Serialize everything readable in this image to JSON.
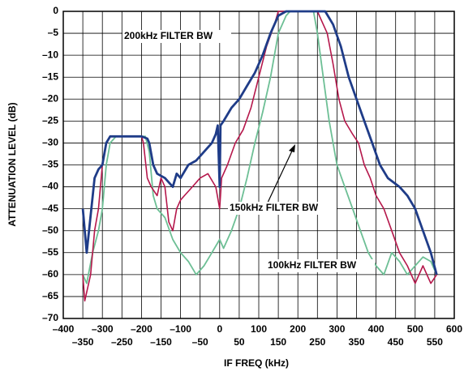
{
  "chart_data": {
    "type": "line",
    "xlabel": "IF FREQ (kHz)",
    "ylabel": "ATTENUATION LEVEL (dB)",
    "xlim": [
      -400,
      600
    ],
    "ylim": [
      -70,
      0
    ],
    "grid": true,
    "xticks": [
      {
        "value": -400,
        "label": "–400"
      },
      {
        "value": -350,
        "label": "–350"
      },
      {
        "value": -300,
        "label": "–300"
      },
      {
        "value": -250,
        "label": "–250"
      },
      {
        "value": -200,
        "label": "–200"
      },
      {
        "value": -150,
        "label": "–150"
      },
      {
        "value": -100,
        "label": "–100"
      },
      {
        "value": -50,
        "label": "–50"
      },
      0,
      50,
      100,
      150,
      200,
      250,
      300,
      350,
      400,
      450,
      500,
      550,
      600
    ],
    "yticks": [
      0,
      {
        "value": -5,
        "label": "–5"
      },
      {
        "value": -10,
        "label": "–10"
      },
      {
        "value": -15,
        "label": "–15"
      },
      {
        "value": -20,
        "label": "–20"
      },
      {
        "value": -25,
        "label": "–25"
      },
      {
        "value": -30,
        "label": "–30"
      },
      {
        "value": -35,
        "label": "–35"
      },
      {
        "value": -40,
        "label": "–40"
      },
      {
        "value": -45,
        "label": "–45"
      },
      {
        "value": -50,
        "label": "–50"
      },
      {
        "value": -55,
        "label": "–55"
      },
      {
        "value": -60,
        "label": "–60"
      },
      {
        "value": -65,
        "label": "–65"
      },
      {
        "value": -70,
        "label": "–70"
      }
    ],
    "series": [
      {
        "name": "200kHz FILTER BW",
        "color": "#1f3c88",
        "x": [
          -350,
          -340,
          -320,
          -310,
          -300,
          -290,
          -280,
          -240,
          -200,
          -185,
          -180,
          -170,
          -160,
          -140,
          -120,
          -110,
          -100,
          -80,
          -60,
          -40,
          -20,
          -10,
          -5,
          0,
          2,
          10,
          30,
          50,
          70,
          90,
          110,
          130,
          150,
          170,
          220,
          270,
          290,
          310,
          330,
          350,
          370,
          390,
          410,
          430,
          460,
          480,
          500,
          520,
          540,
          555
        ],
        "values": [
          -45,
          -55,
          -38,
          -36,
          -35,
          -30,
          -28.5,
          -28.5,
          -28.5,
          -29,
          -30,
          -35,
          -37,
          -38,
          -40,
          -37,
          -38,
          -35,
          -34,
          -32,
          -30,
          -28,
          -26,
          -40,
          -26,
          -25,
          -22,
          -20,
          -17,
          -14,
          -10,
          -5,
          -1,
          0,
          0,
          0,
          -3,
          -8,
          -15,
          -20,
          -25,
          -30,
          -35,
          -38,
          -40,
          -42,
          -45,
          -50,
          -55,
          -60
        ]
      },
      {
        "name": "150kHz FILTER BW",
        "color": "#b5174b",
        "x": [
          -350,
          -345,
          -330,
          -320,
          -310,
          -300,
          -290,
          -280,
          -240,
          -200,
          -195,
          -185,
          -175,
          -160,
          -150,
          -140,
          -130,
          -120,
          -110,
          -100,
          -90,
          -70,
          -50,
          -30,
          -10,
          0,
          5,
          20,
          40,
          60,
          80,
          100,
          120,
          140,
          150,
          200,
          250,
          260,
          275,
          290,
          305,
          320,
          340,
          355,
          370,
          385,
          400,
          420,
          440,
          460,
          480,
          500,
          520,
          540,
          555
        ],
        "values": [
          -60,
          -66,
          -60,
          -50,
          -45,
          -35,
          -30,
          -28.5,
          -28.5,
          -28.5,
          -30,
          -38,
          -40,
          -42,
          -38,
          -40,
          -48,
          -50,
          -45,
          -43,
          -42,
          -40,
          -38,
          -37,
          -40,
          -45,
          -38,
          -35,
          -30,
          -27,
          -22,
          -15,
          -8,
          -3,
          0,
          0,
          0,
          -2,
          -5,
          -12,
          -20,
          -25,
          -28,
          -30,
          -35,
          -38,
          -42,
          -45,
          -50,
          -55,
          -58,
          -62,
          -58,
          -62,
          -60
        ]
      },
      {
        "name": "100kHz FILTER BW",
        "color": "#6dbf95",
        "x": [
          -350,
          -340,
          -325,
          -310,
          -300,
          -290,
          -280,
          -265,
          -230,
          -190,
          -180,
          -170,
          -160,
          -140,
          -120,
          -100,
          -80,
          -60,
          -40,
          -20,
          0,
          10,
          30,
          50,
          70,
          90,
          110,
          130,
          150,
          170,
          180,
          210,
          240,
          250,
          265,
          280,
          300,
          320,
          340,
          360,
          380,
          400,
          420,
          440,
          460,
          480,
          500,
          520,
          540,
          555
        ],
        "values": [
          -60,
          -62,
          -55,
          -50,
          -45,
          -35,
          -30,
          -28.5,
          -28.5,
          -28.5,
          -32,
          -42,
          -45,
          -47,
          -52,
          -55,
          -57,
          -60,
          -58,
          -55,
          -52,
          -54,
          -50,
          -45,
          -38,
          -30,
          -23,
          -15,
          -5,
          -1,
          0,
          0,
          0,
          -5,
          -15,
          -25,
          -35,
          -40,
          -45,
          -50,
          -55,
          -58,
          -60,
          -55,
          -57,
          -60,
          -58,
          -56,
          -57,
          -60
        ]
      }
    ]
  }
}
